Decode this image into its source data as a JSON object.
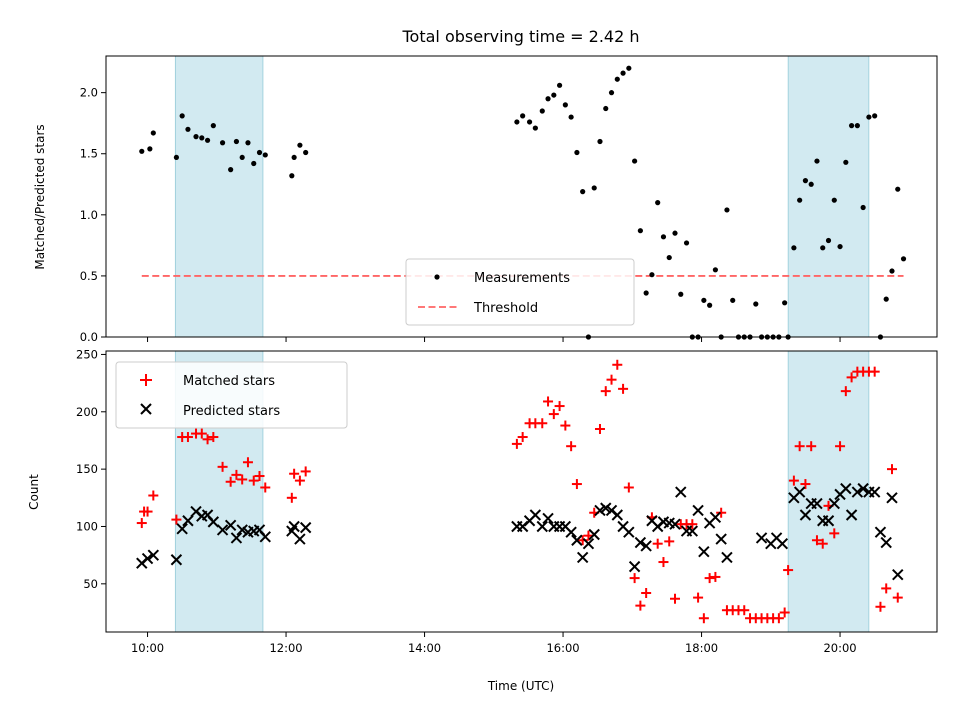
{
  "chart_data": {
    "type": "scatter",
    "title": "Total observing time = 2.42 h",
    "xlabel": "Time (UTC)",
    "x_ticks": [
      "10:00",
      "12:00",
      "14:00",
      "16:00",
      "18:00",
      "20:00"
    ],
    "shaded_intervals": [
      [
        "10:24",
        "11:40"
      ],
      [
        "19:15",
        "20:25"
      ]
    ],
    "shade_color": "#add8e6",
    "top": {
      "ylabel": "Matched/Predicted stars",
      "ylim": [
        0,
        2.3
      ],
      "y_ticks": [
        "0.0",
        "0.5",
        "1.0",
        "1.5",
        "2.0"
      ],
      "threshold": {
        "name": "Threshold",
        "value": 0.5,
        "x_range": [
          "09:55",
          "20:55"
        ],
        "color": "#ff6666"
      },
      "series": [
        {
          "name": "Measurements",
          "color": "#000000",
          "points": [
            [
              "09:55",
              1.52
            ],
            [
              "10:02",
              1.54
            ],
            [
              "10:05",
              1.67
            ],
            [
              "10:25",
              1.47
            ],
            [
              "10:30",
              1.81
            ],
            [
              "10:35",
              1.7
            ],
            [
              "10:42",
              1.64
            ],
            [
              "10:47",
              1.63
            ],
            [
              "10:52",
              1.61
            ],
            [
              "10:57",
              1.73
            ],
            [
              "11:05",
              1.59
            ],
            [
              "11:12",
              1.37
            ],
            [
              "11:17",
              1.6
            ],
            [
              "11:22",
              1.47
            ],
            [
              "11:27",
              1.59
            ],
            [
              "11:32",
              1.42
            ],
            [
              "11:37",
              1.51
            ],
            [
              "11:42",
              1.49
            ],
            [
              "12:05",
              1.32
            ],
            [
              "12:07",
              1.47
            ],
            [
              "12:12",
              1.57
            ],
            [
              "12:17",
              1.51
            ],
            [
              "15:20",
              1.76
            ],
            [
              "15:25",
              1.81
            ],
            [
              "15:31",
              1.76
            ],
            [
              "15:36",
              1.71
            ],
            [
              "15:42",
              1.85
            ],
            [
              "15:47",
              1.95
            ],
            [
              "15:52",
              1.98
            ],
            [
              "15:57",
              2.06
            ],
            [
              "16:02",
              1.9
            ],
            [
              "16:07",
              1.8
            ],
            [
              "16:12",
              1.51
            ],
            [
              "16:17",
              1.19
            ],
            [
              "16:22",
              0.0
            ],
            [
              "16:27",
              1.22
            ],
            [
              "16:32",
              1.6
            ],
            [
              "16:37",
              1.87
            ],
            [
              "16:42",
              2.0
            ],
            [
              "16:47",
              2.11
            ],
            [
              "16:52",
              2.16
            ],
            [
              "16:57",
              2.2
            ],
            [
              "17:02",
              1.44
            ],
            [
              "17:07",
              0.87
            ],
            [
              "17:12",
              0.36
            ],
            [
              "17:17",
              0.51
            ],
            [
              "17:22",
              1.1
            ],
            [
              "17:27",
              0.82
            ],
            [
              "17:32",
              0.65
            ],
            [
              "17:37",
              0.85
            ],
            [
              "17:42",
              0.35
            ],
            [
              "17:47",
              0.77
            ],
            [
              "17:52",
              0.0
            ],
            [
              "17:57",
              0.0
            ],
            [
              "18:02",
              0.3
            ],
            [
              "18:07",
              0.26
            ],
            [
              "18:12",
              0.55
            ],
            [
              "18:17",
              0.0
            ],
            [
              "18:22",
              1.04
            ],
            [
              "18:27",
              0.3
            ],
            [
              "18:32",
              0.0
            ],
            [
              "18:37",
              0.0
            ],
            [
              "18:42",
              0.0
            ],
            [
              "18:47",
              0.27
            ],
            [
              "18:52",
              0.0
            ],
            [
              "18:57",
              0.0
            ],
            [
              "19:02",
              0.0
            ],
            [
              "19:07",
              0.0
            ],
            [
              "19:12",
              0.28
            ],
            [
              "19:15",
              0.0
            ],
            [
              "19:20",
              0.73
            ],
            [
              "19:25",
              1.12
            ],
            [
              "19:30",
              1.28
            ],
            [
              "19:35",
              1.25
            ],
            [
              "19:40",
              1.44
            ],
            [
              "19:45",
              0.73
            ],
            [
              "19:50",
              0.79
            ],
            [
              "19:55",
              1.12
            ],
            [
              "20:00",
              0.74
            ],
            [
              "20:05",
              1.43
            ],
            [
              "20:10",
              1.73
            ],
            [
              "20:15",
              1.73
            ],
            [
              "20:20",
              1.06
            ],
            [
              "20:25",
              1.8
            ],
            [
              "20:30",
              1.81
            ],
            [
              "20:35",
              0.0
            ],
            [
              "20:40",
              0.31
            ],
            [
              "20:45",
              0.54
            ],
            [
              "20:50",
              1.21
            ],
            [
              "20:55",
              0.64
            ]
          ]
        }
      ],
      "legend": [
        "Measurements",
        "Threshold"
      ]
    },
    "bottom": {
      "ylabel": "Count",
      "ylim": [
        8,
        253
      ],
      "y_ticks": [
        "50",
        "100",
        "150",
        "200",
        "250"
      ],
      "series": [
        {
          "name": "Matched stars",
          "color": "#ff0000",
          "marker": "plus",
          "points": [
            [
              "09:55",
              103
            ],
            [
              "09:57",
              113
            ],
            [
              "10:00",
              113
            ],
            [
              "10:05",
              127
            ],
            [
              "10:25",
              106
            ],
            [
              "10:30",
              178
            ],
            [
              "10:35",
              178
            ],
            [
              "10:42",
              181
            ],
            [
              "10:47",
              181
            ],
            [
              "10:52",
              176
            ],
            [
              "10:57",
              178
            ],
            [
              "11:05",
              152
            ],
            [
              "11:12",
              139
            ],
            [
              "11:17",
              145
            ],
            [
              "11:22",
              141
            ],
            [
              "11:27",
              156
            ],
            [
              "11:32",
              140
            ],
            [
              "11:37",
              144
            ],
            [
              "11:42",
              134
            ],
            [
              "12:05",
              125
            ],
            [
              "12:07",
              146
            ],
            [
              "12:12",
              140
            ],
            [
              "12:17",
              148
            ],
            [
              "15:20",
              172
            ],
            [
              "15:25",
              178
            ],
            [
              "15:31",
              190
            ],
            [
              "15:36",
              190
            ],
            [
              "15:42",
              190
            ],
            [
              "15:47",
              209
            ],
            [
              "15:52",
              198
            ],
            [
              "15:57",
              205
            ],
            [
              "16:02",
              188
            ],
            [
              "16:07",
              170
            ],
            [
              "16:12",
              137
            ],
            [
              "16:17",
              88
            ],
            [
              "16:22",
              92
            ],
            [
              "16:27",
              112
            ],
            [
              "16:32",
              185
            ],
            [
              "16:37",
              218
            ],
            [
              "16:42",
              228
            ],
            [
              "16:47",
              241
            ],
            [
              "16:52",
              220
            ],
            [
              "16:57",
              134
            ],
            [
              "17:02",
              55
            ],
            [
              "17:07",
              31
            ],
            [
              "17:12",
              42
            ],
            [
              "17:17",
              108
            ],
            [
              "17:22",
              85
            ],
            [
              "17:27",
              69
            ],
            [
              "17:32",
              87
            ],
            [
              "17:37",
              37
            ],
            [
              "17:42",
              102
            ],
            [
              "17:47",
              102
            ],
            [
              "17:52",
              102
            ],
            [
              "17:57",
              38
            ],
            [
              "18:02",
              20
            ],
            [
              "18:07",
              55
            ],
            [
              "18:12",
              56
            ],
            [
              "18:17",
              112
            ],
            [
              "18:22",
              27
            ],
            [
              "18:27",
              27
            ],
            [
              "18:32",
              27
            ],
            [
              "18:37",
              27
            ],
            [
              "18:42",
              20
            ],
            [
              "18:47",
              20
            ],
            [
              "18:52",
              20
            ],
            [
              "18:57",
              20
            ],
            [
              "19:02",
              20
            ],
            [
              "19:07",
              20
            ],
            [
              "19:12",
              25
            ],
            [
              "19:15",
              62
            ],
            [
              "19:20",
              140
            ],
            [
              "19:25",
              170
            ],
            [
              "19:30",
              137
            ],
            [
              "19:35",
              170
            ],
            [
              "19:40",
              88
            ],
            [
              "19:45",
              85
            ],
            [
              "19:50",
              118
            ],
            [
              "19:55",
              94
            ],
            [
              "20:00",
              170
            ],
            [
              "20:05",
              218
            ],
            [
              "20:10",
              230
            ],
            [
              "20:15",
              235
            ],
            [
              "20:20",
              235
            ],
            [
              "20:25",
              235
            ],
            [
              "20:30",
              235
            ],
            [
              "20:35",
              30
            ],
            [
              "20:40",
              46
            ],
            [
              "20:45",
              150
            ],
            [
              "20:50",
              38
            ]
          ]
        },
        {
          "name": "Predicted stars",
          "color": "#000000",
          "marker": "x",
          "points": [
            [
              "09:55",
              68
            ],
            [
              "10:00",
              72
            ],
            [
              "10:05",
              75
            ],
            [
              "10:25",
              71
            ],
            [
              "10:30",
              98
            ],
            [
              "10:35",
              105
            ],
            [
              "10:42",
              113
            ],
            [
              "10:47",
              109
            ],
            [
              "10:52",
              110
            ],
            [
              "10:57",
              104
            ],
            [
              "11:05",
              97
            ],
            [
              "11:12",
              101
            ],
            [
              "11:17",
              90
            ],
            [
              "11:22",
              97
            ],
            [
              "11:27",
              95
            ],
            [
              "11:32",
              96
            ],
            [
              "11:37",
              97
            ],
            [
              "11:42",
              91
            ],
            [
              "12:05",
              96
            ],
            [
              "12:07",
              100
            ],
            [
              "12:12",
              89
            ],
            [
              "12:17",
              99
            ],
            [
              "15:20",
              100
            ],
            [
              "15:25",
              100
            ],
            [
              "15:31",
              105
            ],
            [
              "15:36",
              110
            ],
            [
              "15:42",
              100
            ],
            [
              "15:47",
              107
            ],
            [
              "15:52",
              100
            ],
            [
              "15:57",
              100
            ],
            [
              "16:02",
              100
            ],
            [
              "16:07",
              95
            ],
            [
              "16:12",
              88
            ],
            [
              "16:17",
              73
            ],
            [
              "16:22",
              85
            ],
            [
              "16:27",
              93
            ],
            [
              "16:32",
              114
            ],
            [
              "16:37",
              116
            ],
            [
              "16:42",
              114
            ],
            [
              "16:47",
              110
            ],
            [
              "16:52",
              100
            ],
            [
              "16:57",
              95
            ],
            [
              "17:02",
              65
            ],
            [
              "17:07",
              86
            ],
            [
              "17:12",
              83
            ],
            [
              "17:17",
              105
            ],
            [
              "17:22",
              100
            ],
            [
              "17:27",
              104
            ],
            [
              "17:32",
              103
            ],
            [
              "17:37",
              102
            ],
            [
              "17:42",
              130
            ],
            [
              "17:47",
              96
            ],
            [
              "17:52",
              96
            ],
            [
              "17:57",
              114
            ],
            [
              "18:02",
              78
            ],
            [
              "18:07",
              103
            ],
            [
              "18:12",
              108
            ],
            [
              "18:17",
              89
            ],
            [
              "18:22",
              73
            ],
            [
              "18:52",
              90
            ],
            [
              "19:00",
              85
            ],
            [
              "19:05",
              90
            ],
            [
              "19:10",
              85
            ],
            [
              "19:20",
              125
            ],
            [
              "19:25",
              130
            ],
            [
              "19:30",
              110
            ],
            [
              "19:35",
              120
            ],
            [
              "19:40",
              120
            ],
            [
              "19:45",
              105
            ],
            [
              "19:50",
              105
            ],
            [
              "19:55",
              120
            ],
            [
              "20:00",
              128
            ],
            [
              "20:05",
              133
            ],
            [
              "20:10",
              110
            ],
            [
              "20:15",
              130
            ],
            [
              "20:20",
              133
            ],
            [
              "20:25",
              130
            ],
            [
              "20:30",
              130
            ],
            [
              "20:35",
              95
            ],
            [
              "20:40",
              86
            ],
            [
              "20:45",
              125
            ],
            [
              "20:50",
              58
            ]
          ]
        }
      ],
      "legend": [
        "Matched stars",
        "Predicted stars"
      ]
    }
  }
}
